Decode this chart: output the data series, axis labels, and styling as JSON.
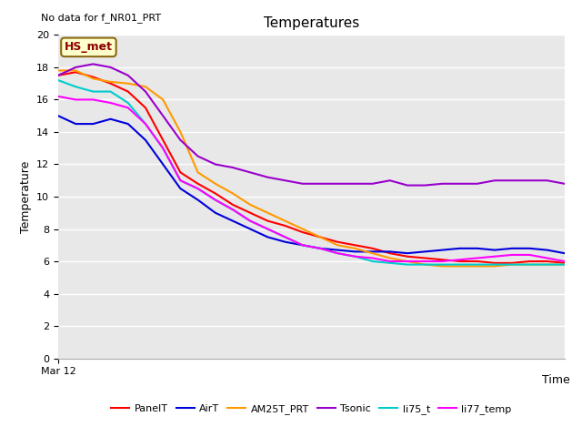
{
  "title": "Temperatures",
  "xlabel": "Time",
  "ylabel": "Temperature",
  "top_left_text": "No data for f_NR01_PRT",
  "annotation_text": "HS_met",
  "annotation_color": "#8B0000",
  "annotation_bg": "#FFFFCC",
  "annotation_border": "#8B6914",
  "ylim": [
    0,
    20
  ],
  "yticks": [
    0,
    2,
    4,
    6,
    8,
    10,
    12,
    14,
    16,
    18,
    20
  ],
  "x_label_text": "Mar 12",
  "fig_bg_color": "#ffffff",
  "plot_bg_color": "#e8e8e8",
  "grid_color": "#ffffff",
  "series_names": [
    "PanelT",
    "AirT",
    "AM25T_PRT",
    "Tsonic",
    "li75_t",
    "li77_temp"
  ],
  "series_colors": [
    "#ff0000",
    "#0000dd",
    "#ff9900",
    "#9900cc",
    "#00cccc",
    "#ff00ff"
  ],
  "series_data": [
    [
      17.5,
      17.7,
      17.4,
      17.0,
      16.5,
      15.5,
      13.5,
      11.5,
      10.8,
      10.2,
      9.5,
      9.0,
      8.5,
      8.2,
      7.8,
      7.5,
      7.2,
      7.0,
      6.8,
      6.5,
      6.3,
      6.2,
      6.1,
      6.0,
      6.0,
      5.9,
      5.9,
      6.0,
      6.0,
      5.9
    ],
    [
      15.0,
      14.5,
      14.5,
      14.8,
      14.5,
      13.5,
      12.0,
      10.5,
      9.8,
      9.0,
      8.5,
      8.0,
      7.5,
      7.2,
      7.0,
      6.8,
      6.7,
      6.6,
      6.6,
      6.6,
      6.5,
      6.6,
      6.7,
      6.8,
      6.8,
      6.7,
      6.8,
      6.8,
      6.7,
      6.5
    ],
    [
      17.8,
      17.8,
      17.3,
      17.1,
      17.0,
      16.8,
      16.0,
      14.0,
      11.5,
      10.8,
      10.2,
      9.5,
      9.0,
      8.5,
      8.0,
      7.5,
      7.0,
      6.8,
      6.5,
      6.2,
      6.0,
      5.8,
      5.7,
      5.7,
      5.7,
      5.7,
      5.8,
      5.8,
      5.8,
      5.8
    ],
    [
      17.5,
      18.0,
      18.2,
      18.0,
      17.5,
      16.5,
      15.0,
      13.5,
      12.5,
      12.0,
      11.8,
      11.5,
      11.2,
      11.0,
      10.8,
      10.8,
      10.8,
      10.8,
      10.8,
      11.0,
      10.7,
      10.7,
      10.8,
      10.8,
      10.8,
      11.0,
      11.0,
      11.0,
      11.0,
      10.8
    ],
    [
      17.2,
      16.8,
      16.5,
      16.5,
      15.8,
      14.5,
      13.0,
      11.0,
      10.5,
      9.8,
      9.2,
      8.5,
      8.0,
      7.5,
      7.0,
      6.8,
      6.5,
      6.3,
      6.0,
      5.9,
      5.8,
      5.8,
      5.8,
      5.8,
      5.8,
      5.8,
      5.8,
      5.8,
      5.8,
      5.8
    ],
    [
      16.2,
      16.0,
      16.0,
      15.8,
      15.5,
      14.5,
      13.0,
      11.0,
      10.5,
      9.8,
      9.2,
      8.5,
      8.0,
      7.5,
      7.0,
      6.8,
      6.5,
      6.3,
      6.2,
      6.0,
      6.0,
      6.0,
      6.0,
      6.1,
      6.2,
      6.3,
      6.4,
      6.4,
      6.2,
      6.0
    ]
  ]
}
